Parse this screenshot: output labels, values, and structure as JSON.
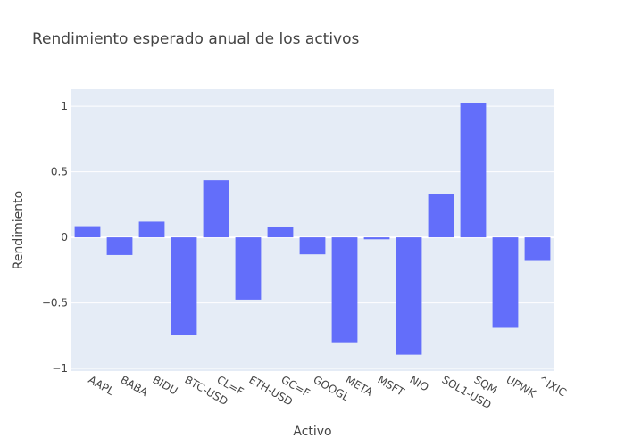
{
  "chart_data": {
    "type": "bar",
    "title": "Rendimiento esperado anual de los activos",
    "xlabel": "Activo",
    "ylabel": "Rendimiento",
    "categories": [
      "AAPL",
      "BABA",
      "BIDU",
      "BTC-USD",
      "CL=F",
      "ETH-USD",
      "GC=F",
      "GOOGL",
      "META",
      "MSFT",
      "NIO",
      "SOL1-USD",
      "SQM",
      "UPWK",
      "^IXIC"
    ],
    "values": [
      0.085,
      -0.135,
      0.12,
      -0.745,
      0.435,
      -0.475,
      0.08,
      -0.13,
      -0.8,
      -0.015,
      -0.895,
      0.33,
      1.025,
      -0.69,
      -0.18
    ],
    "ylim": [
      -1.02,
      1.13
    ],
    "yticks": [
      -1,
      -0.5,
      0,
      0.5,
      1
    ],
    "ytick_labels": [
      "−1",
      "−0.5",
      "0",
      "0.5",
      "1"
    ],
    "grid": true,
    "bar_color": "#636efa",
    "plot_bg": "#e5ecf6"
  }
}
